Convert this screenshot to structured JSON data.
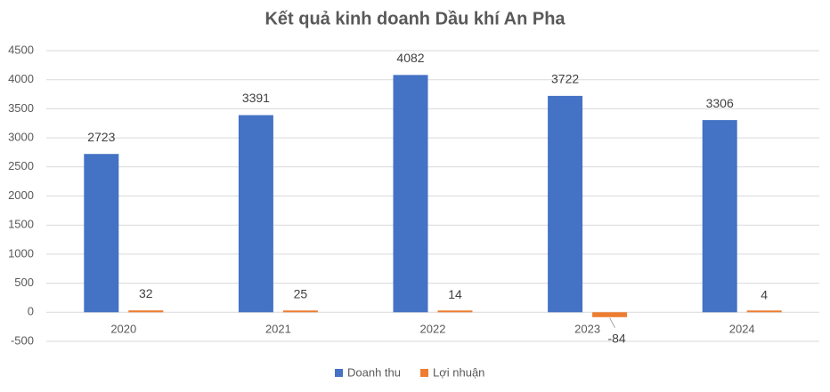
{
  "chart_data": {
    "type": "bar",
    "title": "Kết quả kinh doanh Dầu khí An Pha",
    "categories": [
      "2020",
      "2021",
      "2022",
      "2023",
      "2024"
    ],
    "series": [
      {
        "name": "Doanh thu",
        "color": "#4472c4",
        "values": [
          2723,
          3391,
          4082,
          3722,
          3306
        ]
      },
      {
        "name": "Lợi nhuận",
        "color": "#ed7d31",
        "values": [
          32,
          25,
          14,
          -84,
          4
        ]
      }
    ],
    "ylim": [
      -500,
      4500
    ],
    "yticks": [
      -500,
      0,
      500,
      1000,
      1500,
      2000,
      2500,
      3000,
      3500,
      4000,
      4500
    ],
    "grid": true,
    "legend": "bottom"
  }
}
